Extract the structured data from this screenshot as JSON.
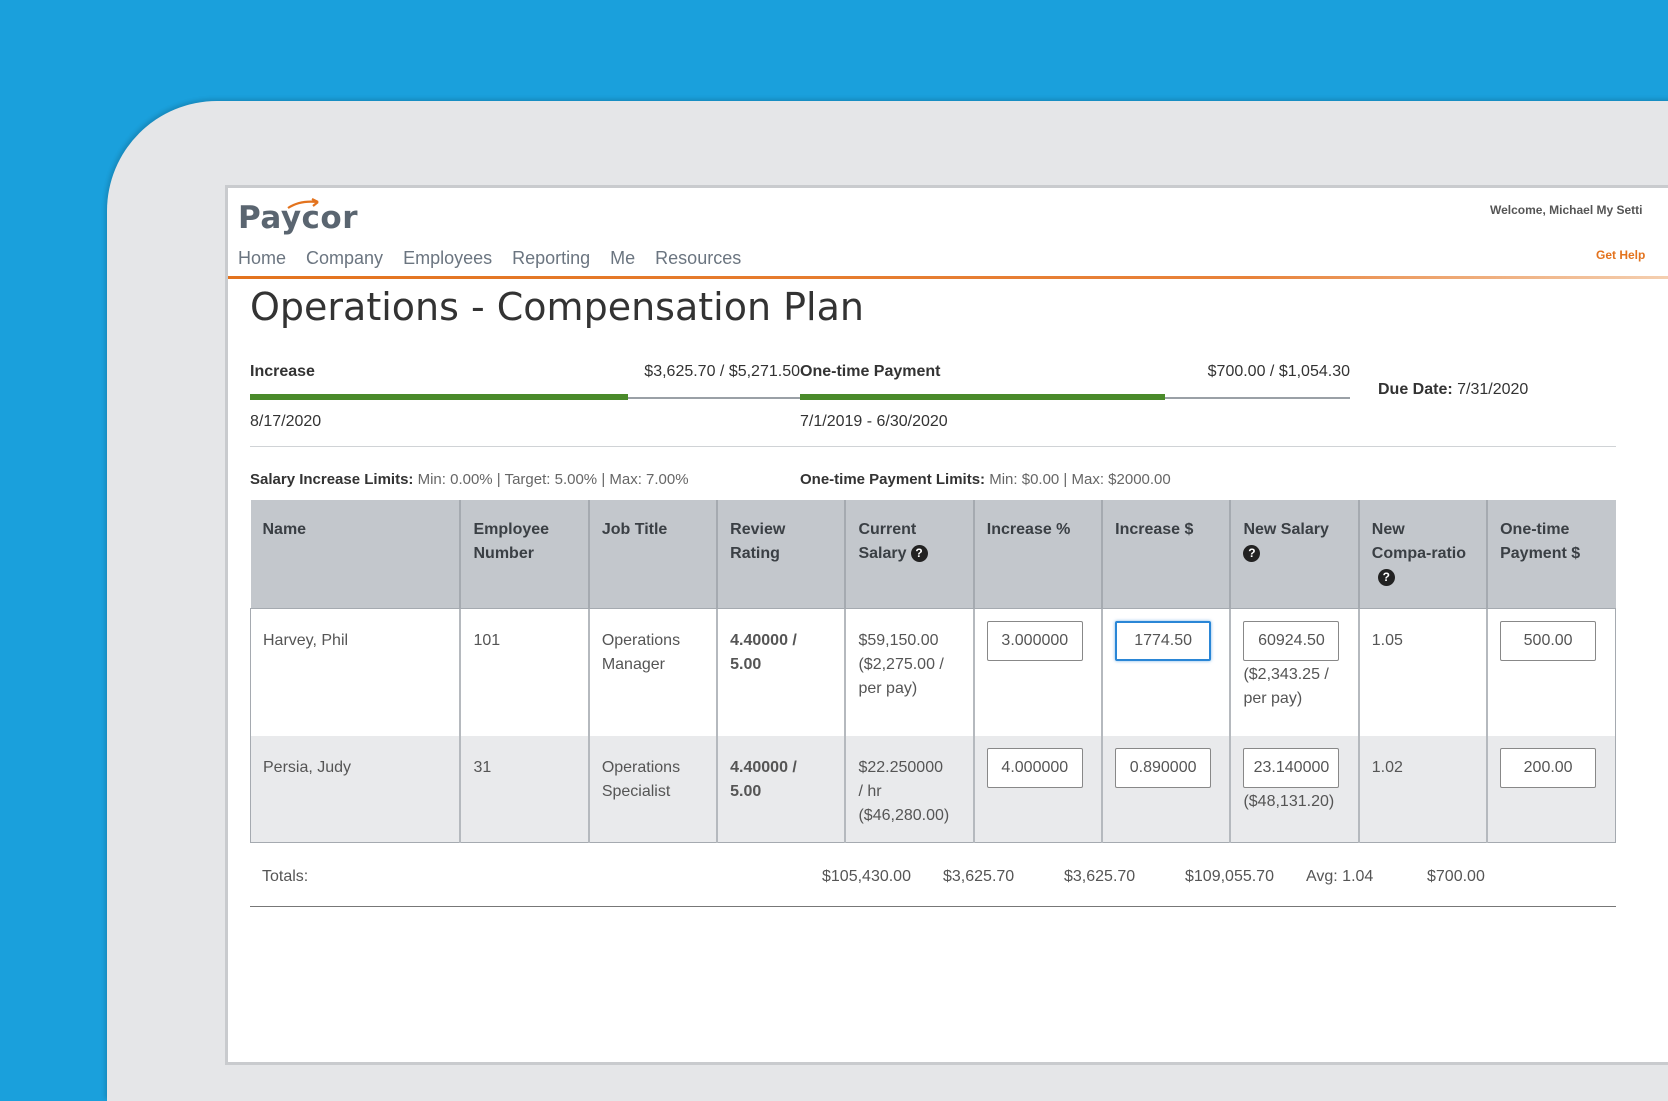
{
  "brand": {
    "logo_text": "Paycor"
  },
  "header": {
    "welcome": "Welcome, Michael   My Setti",
    "get_help": "Get Help"
  },
  "nav": [
    "Home",
    "Company",
    "Employees",
    "Reporting",
    "Me",
    "Resources"
  ],
  "page": {
    "title": "Operations - Compensation Plan"
  },
  "budgets": {
    "increase": {
      "label": "Increase",
      "amount": "$3,625.70 / $5,271.50",
      "date": "8/17/2020",
      "progress": 0.688
    },
    "one_time": {
      "label": "One-time Payment",
      "amount": "$700.00 / $1,054.30",
      "date": "7/1/2019 - 6/30/2020",
      "progress": 0.664
    }
  },
  "due_date": {
    "label": "Due Date:",
    "value": "7/31/2020"
  },
  "limits": {
    "salary_label": "Salary Increase Limits:",
    "salary_values": "Min: 0.00% | Target: 5.00% | Max: 7.00%",
    "onetime_label": "One-time Payment Limits:",
    "onetime_values": "Min: $0.00 | Max: $2000.00"
  },
  "table": {
    "headers": {
      "name": "Name",
      "employee_number_1": "Employee",
      "employee_number_2": "Number",
      "job_title": "Job Title",
      "review_rating_1": "Review",
      "review_rating_2": "Rating",
      "current_salary_1": "Current",
      "current_salary_2": "Salary",
      "increase_pct": "Increase %",
      "increase_dollar": "Increase $",
      "new_salary": "New Salary",
      "new_compa_1": "New",
      "new_compa_2": "Compa-ratio",
      "one_time_1": "One-time",
      "one_time_2": "Payment $"
    },
    "rows": [
      {
        "name": "Harvey, Phil",
        "employee_number": "101",
        "job_title_1": "Operations",
        "job_title_2": "Manager",
        "rating_1": "4.40000 /",
        "rating_2": "5.00",
        "salary_1": "$59,150.00",
        "salary_2": "($2,275.00 /",
        "salary_3": "per pay)",
        "increase_pct": "3.000000",
        "increase_dollar": "1774.50",
        "new_salary": "60924.50",
        "new_salary_sub_1": "($2,343.25 /",
        "new_salary_sub_2": "per pay)",
        "compa_ratio": "1.05",
        "one_time": "500.00"
      },
      {
        "name": "Persia, Judy",
        "employee_number": "31",
        "job_title_1": "Operations",
        "job_title_2": "Specialist",
        "rating_1": "4.40000 /",
        "rating_2": "5.00",
        "salary_1": "$22.250000",
        "salary_2": "/ hr",
        "salary_3": "($46,280.00)",
        "increase_pct": "4.000000",
        "increase_dollar": "0.890000",
        "new_salary": "23.140000",
        "new_salary_sub_1": "($48,131.20)",
        "compa_ratio": "1.02",
        "one_time": "200.00"
      }
    ],
    "totals": {
      "label": "Totals:",
      "current_salary": "$105,430.00",
      "increase_pct": "$3,625.70",
      "increase_dollar": "$3,625.70",
      "new_salary": "$109,055.70",
      "compa_ratio": "Avg: 1.04",
      "one_time": "$700.00"
    }
  },
  "colors": {
    "brand_orange": "#e3731e",
    "progress_green": "#4a8a2a",
    "rating_blue": "#1a7ab8",
    "background_blue": "#1aa0dc"
  }
}
